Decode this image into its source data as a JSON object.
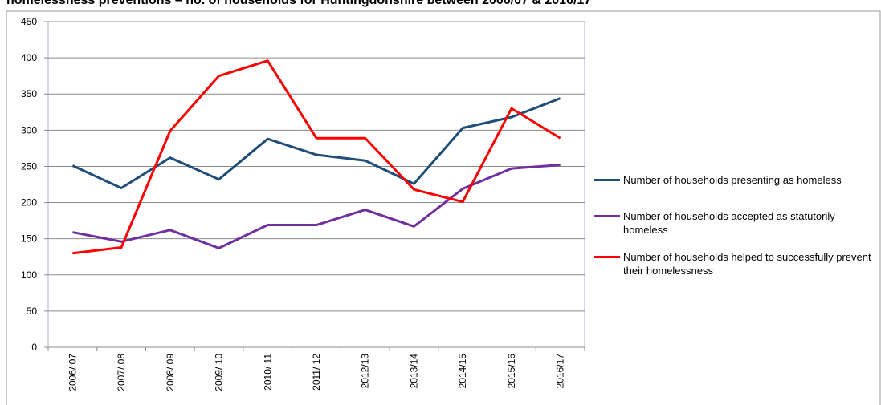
{
  "chart_data": {
    "type": "line",
    "title": "homelessness preventions – no. of households for Huntingdonshire between 2006/07 & 2016/17",
    "categories": [
      "2006/ 07",
      "2007/ 08",
      "2008/ 09",
      "2009/ 10",
      "2010/ 11",
      "2011/ 12",
      "2012/13",
      "2013/14",
      "2014/15",
      "2015/16",
      "2016/17"
    ],
    "series": [
      {
        "name": "Number of households presenting as homeless",
        "color": "#1f4e79",
        "values": [
          251,
          220,
          262,
          232,
          288,
          266,
          258,
          226,
          303,
          318,
          344
        ]
      },
      {
        "name": "Number of households accepted as statutorily homeless",
        "color": "#7030a0",
        "values": [
          159,
          146,
          162,
          137,
          169,
          169,
          190,
          167,
          219,
          247,
          252
        ]
      },
      {
        "name": "Number of households helped to successfully prevent their homelessness",
        "color": "#ff0000",
        "values": [
          130,
          138,
          299,
          375,
          396,
          289,
          289,
          218,
          201,
          330,
          289
        ]
      }
    ],
    "ylim": [
      0,
      450
    ],
    "yticks": [
      0,
      50,
      100,
      150,
      200,
      250,
      300,
      350,
      400,
      450
    ],
    "grid": true,
    "legend": "right"
  }
}
